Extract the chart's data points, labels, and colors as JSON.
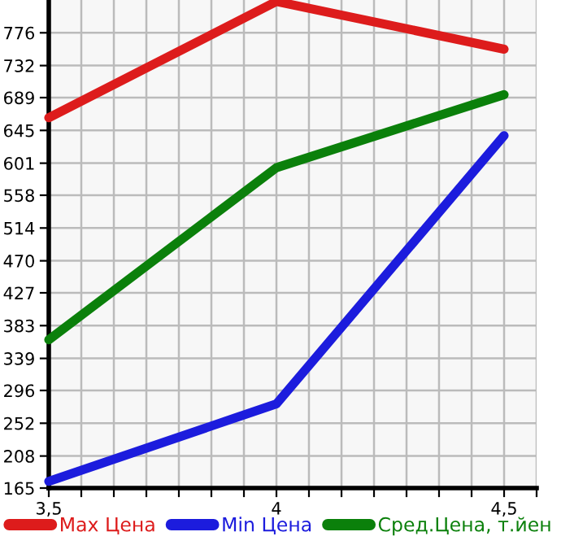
{
  "chart_data": {
    "type": "line",
    "x": [
      3.5,
      4,
      4.5
    ],
    "series": [
      {
        "name": "Max Цена",
        "color": "#dd1c1c",
        "values": [
          662,
          818,
          754
        ]
      },
      {
        "name": "Min Цена",
        "color": "#1c1cdd",
        "values": [
          174,
          278,
          638
        ]
      },
      {
        "name": "Сред.Цена, т.йен",
        "color": "#0b800b",
        "values": [
          364,
          595,
          693
        ]
      }
    ],
    "xlim": [
      3.5,
      4.5714
    ],
    "xticks": [
      {
        "value": 3.5,
        "label": "3,5"
      },
      {
        "value": 3.5714,
        "label": null
      },
      {
        "value": 3.6429,
        "label": null
      },
      {
        "value": 3.7143,
        "label": null
      },
      {
        "value": 3.7857,
        "label": null
      },
      {
        "value": 3.8571,
        "label": null
      },
      {
        "value": 3.9286,
        "label": null
      },
      {
        "value": 4,
        "label": "4"
      },
      {
        "value": 4.0714,
        "label": null
      },
      {
        "value": 4.1429,
        "label": null
      },
      {
        "value": 4.2143,
        "label": null
      },
      {
        "value": 4.2857,
        "label": null
      },
      {
        "value": 4.3571,
        "label": null
      },
      {
        "value": 4.4286,
        "label": null
      },
      {
        "value": 4.5,
        "label": "4,5"
      },
      {
        "value": 4.5714,
        "label": null
      }
    ],
    "ylim": [
      165,
      820
    ],
    "yticks": [
      165,
      208,
      252,
      296,
      339,
      383,
      427,
      470,
      514,
      558,
      601,
      645,
      689,
      732,
      776
    ],
    "grid": true,
    "legend": "bottom",
    "marker": "none",
    "line_style": "solid"
  }
}
